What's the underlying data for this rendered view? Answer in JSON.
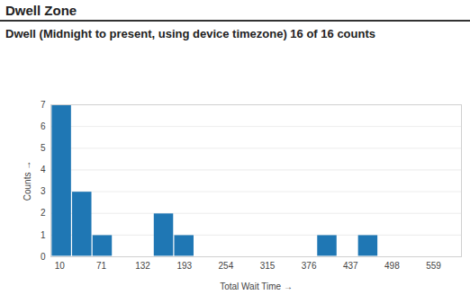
{
  "chart_data": {
    "type": "histogram",
    "title": "Dwell Zone",
    "subtitle": "Dwell (Midnight to present, using device timezone) 16 of 16 counts",
    "x_label": "Total Wait Time",
    "y_label": "Counts",
    "bins": [
      -2,
      28,
      58,
      88,
      118,
      148,
      178,
      208,
      238,
      268,
      298,
      328,
      358,
      388,
      418,
      448,
      478
    ],
    "values": [
      7,
      3,
      1,
      0,
      0,
      2,
      1,
      0,
      0,
      0,
      0,
      0,
      0,
      1,
      0,
      1
    ],
    "color": "#1f77b4",
    "xlim": [
      -3,
      600
    ],
    "xticks": [
      10,
      71,
      132,
      193,
      254,
      315,
      376,
      437,
      498,
      559
    ],
    "ylim": [
      0,
      7
    ],
    "yticks": [
      0,
      1,
      2,
      3,
      4,
      5,
      6,
      7
    ],
    "grid": true
  }
}
